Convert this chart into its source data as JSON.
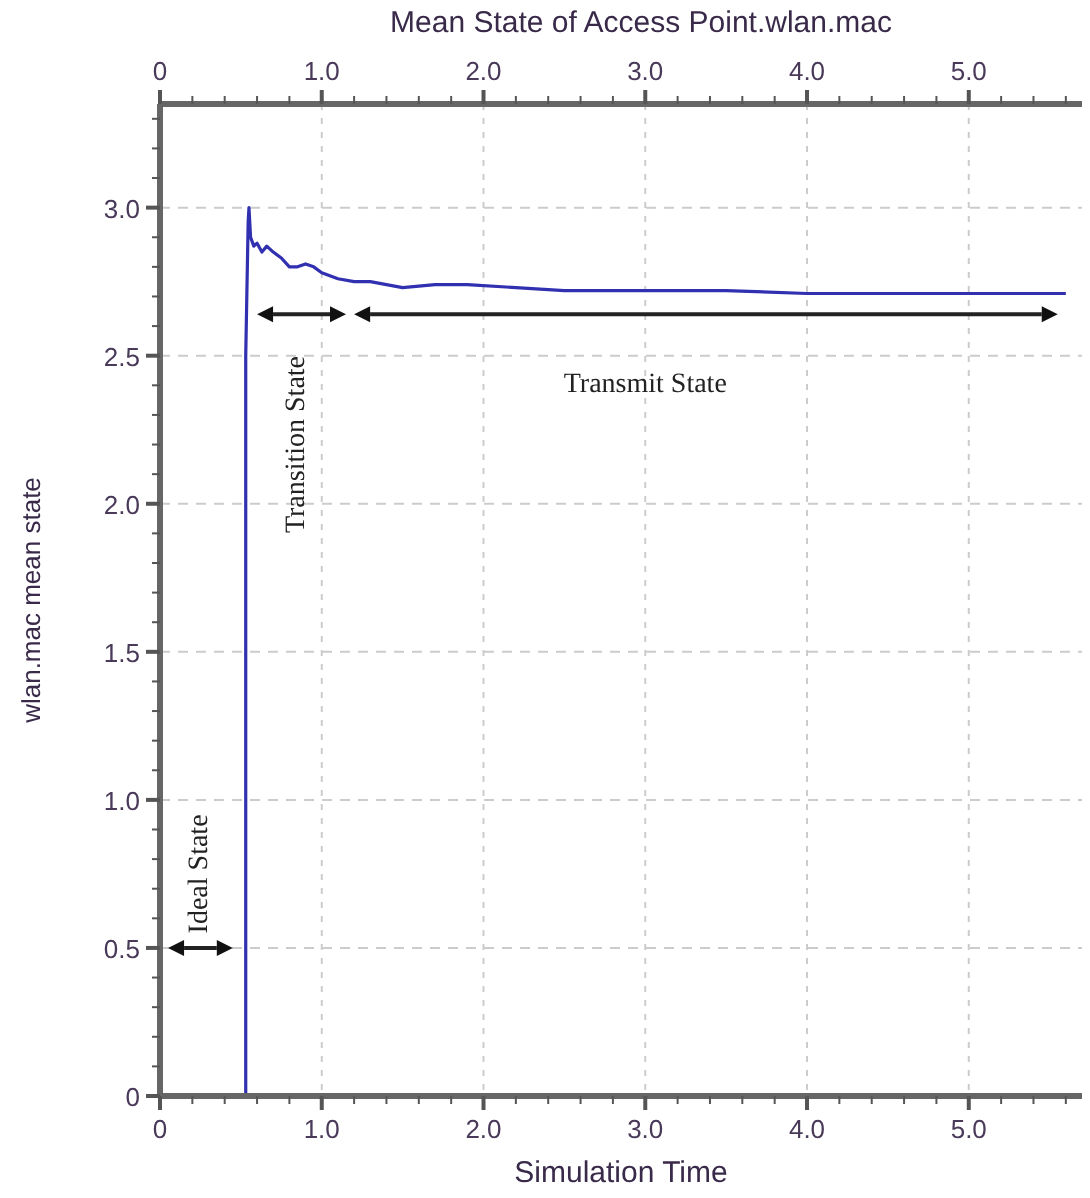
{
  "chart_data": {
    "type": "line",
    "title": "Mean State of Access Point.wlan.mac",
    "xlabel": "Simulation Time",
    "ylabel": "wlan.mac mean state",
    "x": [
      0,
      0.53,
      0.53,
      0.535,
      0.545,
      0.55,
      0.56,
      0.58,
      0.6,
      0.63,
      0.66,
      0.7,
      0.75,
      0.8,
      0.85,
      0.9,
      0.95,
      1.0,
      1.05,
      1.1,
      1.2,
      1.3,
      1.5,
      1.7,
      1.9,
      2.2,
      2.5,
      3.0,
      3.5,
      4.0,
      5.0,
      5.6
    ],
    "series": [
      {
        "color": "#3030b0",
        "values": [
          0,
          0,
          2.5,
          2.65,
          2.95,
          3.0,
          2.9,
          2.87,
          2.88,
          2.85,
          2.87,
          2.85,
          2.83,
          2.8,
          2.8,
          2.81,
          2.8,
          2.78,
          2.77,
          2.76,
          2.75,
          2.75,
          2.73,
          2.74,
          2.74,
          2.73,
          2.72,
          2.72,
          2.72,
          2.71,
          2.71,
          2.71
        ]
      }
    ],
    "xlim": [
      0,
      5.7
    ],
    "ylim": [
      0,
      3.35
    ],
    "xticks": [
      0,
      {
        "value": 1,
        "label": "1.0"
      },
      {
        "value": 2,
        "label": "2.0"
      },
      {
        "value": 3,
        "label": "3.0"
      },
      {
        "value": 4,
        "label": "4.0"
      },
      {
        "value": 5,
        "label": "5.0"
      }
    ],
    "x2lim": [
      0,
      5.7
    ],
    "x2ticks": [
      0,
      {
        "value": 1,
        "label": "1.0"
      },
      {
        "value": 2,
        "label": "2.0"
      },
      {
        "value": 3,
        "label": "3.0"
      },
      {
        "value": 4,
        "label": "4.0"
      },
      {
        "value": 5,
        "label": "5.0"
      }
    ],
    "yticks": [
      0,
      0.5,
      {
        "value": 1,
        "label": "1.0"
      },
      1.5,
      {
        "value": 2,
        "label": "2.0"
      },
      2.5,
      {
        "value": 3,
        "label": "3.0"
      }
    ],
    "grid": true,
    "line_style": "solid",
    "marker": "none",
    "annotations": [
      "Ideal State",
      "Transition State",
      "Transmit State"
    ]
  }
}
